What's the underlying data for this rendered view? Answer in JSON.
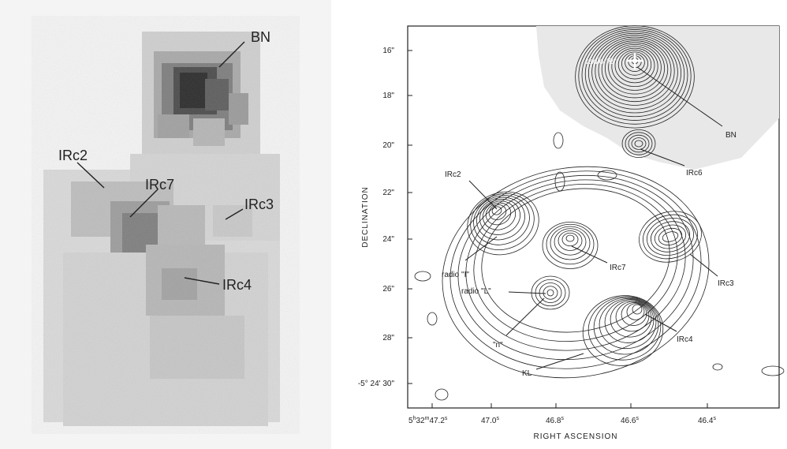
{
  "left_panel": {
    "labels": {
      "bn": "BN",
      "irc2": "IRc2",
      "irc7": "IRc7",
      "irc3": "IRc3",
      "irc4": "IRc4"
    }
  },
  "right_panel": {
    "axes": {
      "ylabel": "DECLINATION",
      "xlabel": "RIGHT ASCENSION",
      "y_ticks": [
        "16\"",
        "18\"",
        "20\"",
        "22\"",
        "24\"",
        "26\"",
        "28\"",
        "-5° 24' 30\""
      ],
      "x_ticks": [
        {
          "main": "5",
          "sup1": "h",
          "mid": "32",
          "sup2": "m",
          "end": "47.2",
          "sup3": "s"
        },
        {
          "main": "47.0",
          "sup": "s"
        },
        {
          "main": "46.8",
          "sup": "s"
        },
        {
          "main": "46.6",
          "sup": "s"
        },
        {
          "main": "46.4",
          "sup": "s"
        }
      ]
    },
    "labels": {
      "radio_b": "radio \"B\"",
      "bn": "BN",
      "irc6": "IRc6",
      "irc2": "IRc2",
      "radio_i": "radio \"I\"",
      "irc7": "IRc7",
      "irc3": "IRc3",
      "radio_l": "radio \"L\"",
      "irc4": "IRc4",
      "n": "\"n\"",
      "kl": "KL"
    }
  }
}
